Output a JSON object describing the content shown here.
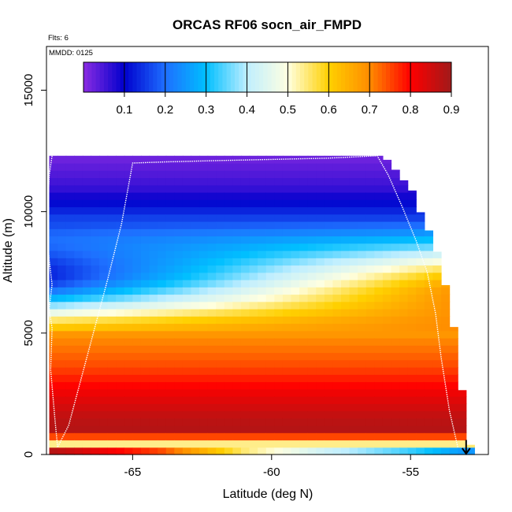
{
  "chart_data": {
    "type": "heatmap",
    "title": "ORCAS RF06 socn_air_FMPD",
    "xlabel": "Latitude (deg N)",
    "ylabel": "Altitude (m)",
    "annotations": {
      "flights": "Flts: 6",
      "date": "MMDD: 0125"
    },
    "xlim": [
      -68.1,
      -52.2
    ],
    "ylim": [
      0,
      16800
    ],
    "x_ticks": [
      -65,
      -60,
      -55
    ],
    "x_tick_labels": [
      "-65",
      "-60",
      "-55"
    ],
    "y_ticks": [
      0,
      5000,
      10000,
      15000
    ],
    "y_tick_labels": [
      "0",
      "5000",
      "10000",
      "15000"
    ],
    "colorbar": {
      "range": [
        0,
        0.9
      ],
      "ticks": [
        0.1,
        0.2,
        0.3,
        0.4,
        0.5,
        0.6,
        0.7,
        0.8,
        0.9
      ],
      "tick_labels": [
        "0.1",
        "0.2",
        "0.3",
        "0.4",
        "0.5",
        "0.6",
        "0.7",
        "0.8",
        "0.9"
      ],
      "stops": [
        [
          0.0,
          "#8a2be2"
        ],
        [
          0.1,
          "#0000cd"
        ],
        [
          0.2,
          "#1e6fff"
        ],
        [
          0.3,
          "#00bfff"
        ],
        [
          0.4,
          "#bfeeff"
        ],
        [
          0.5,
          "#ffffe0"
        ],
        [
          0.6,
          "#ffd000"
        ],
        [
          0.7,
          "#ff8c00"
        ],
        [
          0.8,
          "#ff0000"
        ],
        [
          0.9,
          "#a01a1a"
        ]
      ]
    },
    "field": {
      "description": "socn_air_FMPD fraction vs latitude and altitude",
      "lat_range": [
        -68,
        -52.8
      ],
      "alt_range": [
        0,
        12300
      ],
      "top_edge": [
        [
          -68,
          12300
        ],
        [
          -56.1,
          12300
        ],
        [
          -55.8,
          12100
        ],
        [
          -55.4,
          11500
        ],
        [
          -54.9,
          10800
        ],
        [
          -54.7,
          10100
        ],
        [
          -54.3,
          9100
        ],
        [
          -54.0,
          8200
        ],
        [
          -53.8,
          7300
        ],
        [
          -53.6,
          6000
        ],
        [
          -53.4,
          5000
        ],
        [
          -53.2,
          3300
        ],
        [
          -53.0,
          700
        ],
        [
          -52.8,
          300
        ]
      ],
      "profile_points": [
        [
          12200,
          0.02
        ],
        [
          11000,
          0.06
        ],
        [
          10200,
          0.12
        ],
        [
          9500,
          0.18
        ],
        [
          8800,
          0.26
        ],
        [
          8000,
          0.33
        ],
        [
          7200,
          0.4
        ],
        [
          6400,
          0.5
        ],
        [
          5600,
          0.62
        ],
        [
          4800,
          0.7
        ],
        [
          3600,
          0.75
        ],
        [
          2500,
          0.82
        ],
        [
          1500,
          0.87
        ],
        [
          900,
          0.88
        ],
        [
          600,
          0.62
        ],
        [
          380,
          0.5
        ],
        [
          150,
          0.88
        ]
      ]
    },
    "flight_track": [
      [
        -67.9,
        12300
      ],
      [
        -68.0,
        11500
      ],
      [
        -68.1,
        9000
      ],
      [
        -68.05,
        8700
      ],
      [
        -68.0,
        8000
      ],
      [
        -67.9,
        7000
      ],
      [
        -68.0,
        6000
      ],
      [
        -67.9,
        5200
      ],
      [
        -67.95,
        3500
      ],
      [
        -67.8,
        1500
      ],
      [
        -67.7,
        300
      ],
      [
        -67.3,
        1200
      ],
      [
        -66.6,
        4200
      ],
      [
        -65.9,
        7200
      ],
      [
        -65.4,
        9500
      ],
      [
        -65.0,
        12000
      ],
      [
        -63.8,
        12050
      ],
      [
        -62.0,
        12100
      ],
      [
        -60.0,
        12150
      ],
      [
        -58.0,
        12200
      ],
      [
        -56.2,
        12300
      ],
      [
        -55.8,
        11500
      ],
      [
        -55.3,
        10200
      ],
      [
        -54.8,
        8800
      ],
      [
        -54.4,
        7500
      ],
      [
        -54.1,
        5800
      ],
      [
        -53.9,
        4000
      ],
      [
        -53.6,
        1800
      ],
      [
        -53.3,
        300
      ]
    ],
    "arrow": {
      "x": -53.0,
      "y_from": 600,
      "y_to": 0
    }
  }
}
